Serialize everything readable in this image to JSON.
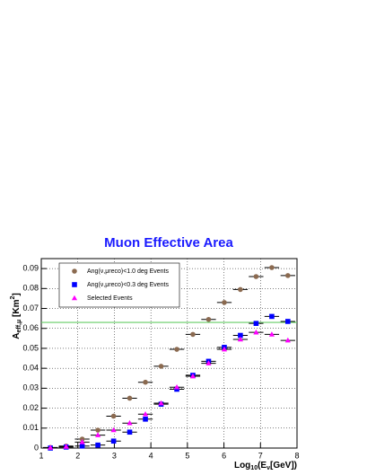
{
  "chart_data": {
    "type": "scatter",
    "title": "Muon Effective Area",
    "y_label": {
      "main": "A",
      "sub": "eff,μ",
      "unit": "[Km",
      "sup": "2",
      "end": "]"
    },
    "x_label": {
      "main": "Log",
      "sub": "10",
      "rest": "(E",
      "sub2": "ν",
      "end": "[GeV])"
    },
    "x": [
      1.25,
      1.68,
      2.12,
      2.55,
      2.98,
      3.42,
      3.85,
      4.28,
      4.71,
      5.15,
      5.58,
      6.01,
      6.45,
      6.88,
      7.31,
      7.75
    ],
    "xerr": 0.2,
    "series": [
      {
        "name": "Ang(ν,μreco)<1.0 deg  Events",
        "color": "#8b6a50",
        "marker": "circle",
        "values": [
          0.0003,
          0.001,
          0.0045,
          0.009,
          0.016,
          0.025,
          0.033,
          0.041,
          0.0495,
          0.057,
          0.0645,
          0.073,
          0.0795,
          0.086,
          0.0905,
          0.0865
        ]
      },
      {
        "name": "Ang(ν,μreco)<0.3 deg  Events",
        "color": "#0000ff",
        "marker": "square",
        "values": [
          0,
          0.0005,
          0.001,
          0.0015,
          0.0035,
          0.008,
          0.0145,
          0.022,
          0.0295,
          0.0365,
          0.0435,
          0.0505,
          0.0565,
          0.0625,
          0.066,
          0.0635
        ]
      },
      {
        "name": "Selected Events",
        "color": "#ff00ff",
        "marker": "triangle",
        "values": [
          0.0002,
          0.0007,
          0.003,
          0.0065,
          0.009,
          0.0125,
          0.017,
          0.0225,
          0.0305,
          0.036,
          0.0425,
          0.0495,
          0.0545,
          0.058,
          0.057,
          0.054
        ]
      }
    ],
    "reference_line": {
      "value": 0.063,
      "color": "#66cc66"
    },
    "xlim": [
      1,
      8
    ],
    "ylim": [
      0,
      0.095
    ],
    "xticks": [
      1,
      2,
      3,
      4,
      5,
      6,
      7,
      8
    ],
    "yticks": [
      0,
      0.01,
      0.02,
      0.03,
      0.04,
      0.05,
      0.06,
      0.07,
      0.08,
      0.09
    ],
    "grid": true
  }
}
